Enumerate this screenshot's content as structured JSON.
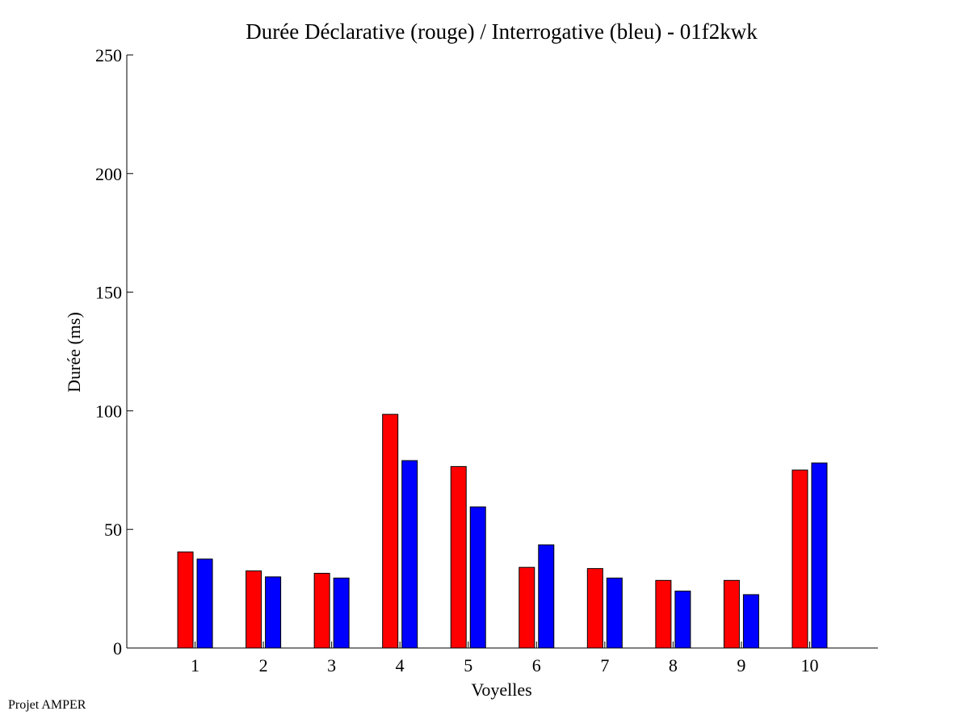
{
  "chart_data": {
    "type": "bar",
    "title": "Durée Déclarative (rouge) / Interrogative (bleu) - 01f2kwk",
    "xlabel": "Voyelles",
    "ylabel": "Durée (ms)",
    "categories": [
      "1",
      "2",
      "3",
      "4",
      "5",
      "6",
      "7",
      "8",
      "9",
      "10"
    ],
    "ylim": [
      0,
      250
    ],
    "yticks": [
      "0",
      "50",
      "100",
      "150",
      "200",
      "250"
    ],
    "grid": false,
    "series": [
      {
        "color": "#ff0000",
        "values": [
          40.5,
          32.5,
          31.5,
          98.5,
          76.5,
          34,
          33.5,
          28.5,
          28.5,
          75
        ]
      },
      {
        "color": "#0000ff",
        "values": [
          37.5,
          30,
          29.5,
          79,
          59.5,
          43.5,
          29.5,
          24,
          22.5,
          78
        ]
      }
    ]
  },
  "footer": {
    "note": "Projet AMPER"
  }
}
